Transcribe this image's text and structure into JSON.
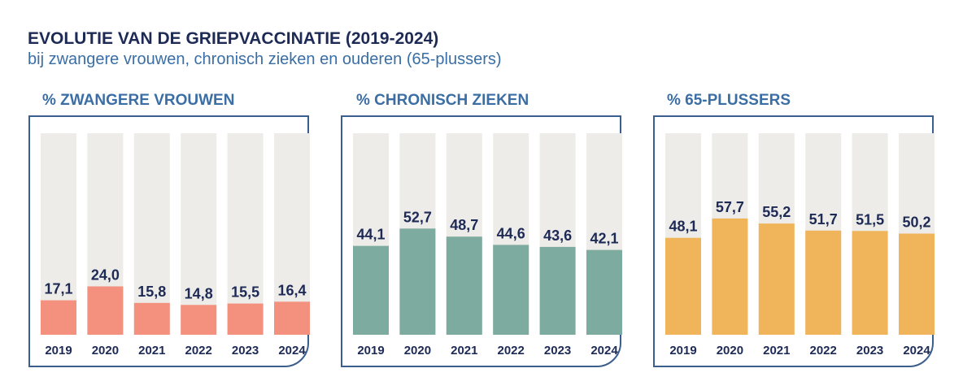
{
  "title": "EVOLUTIE VAN DE GRIEPVACCINATIE (2019-2024)",
  "subtitle": "bij zwangere vrouwen, chronisch zieken en ouderen (65-plussers)",
  "chart_data": [
    {
      "type": "bar",
      "title": "% ZWANGERE VROUWEN",
      "categories": [
        "2019",
        "2020",
        "2021",
        "2022",
        "2023",
        "2024"
      ],
      "values": [
        17.1,
        24.0,
        15.8,
        14.8,
        15.5,
        16.4
      ],
      "value_labels": [
        "17,1",
        "24,0",
        "15,8",
        "14,8",
        "15,5",
        "16,4"
      ],
      "ylim": [
        0,
        100
      ],
      "color": "#f4917e",
      "track_color": "#eeece8"
    },
    {
      "type": "bar",
      "title": "% CHRONISCH ZIEKEN",
      "categories": [
        "2019",
        "2020",
        "2021",
        "2022",
        "2023",
        "2024"
      ],
      "values": [
        44.1,
        52.7,
        48.7,
        44.6,
        43.6,
        42.1
      ],
      "value_labels": [
        "44,1",
        "52,7",
        "48,7",
        "44,6",
        "43,6",
        "42,1"
      ],
      "ylim": [
        0,
        100
      ],
      "color": "#7eab9f",
      "track_color": "#eeece8"
    },
    {
      "type": "bar",
      "title": "% 65-PLUSSERS",
      "categories": [
        "2019",
        "2020",
        "2021",
        "2022",
        "2023",
        "2024"
      ],
      "values": [
        48.1,
        57.7,
        55.2,
        51.7,
        51.5,
        50.2
      ],
      "value_labels": [
        "48,1",
        "57,7",
        "55,2",
        "51,7",
        "51,5",
        "50,2"
      ],
      "ylim": [
        0,
        100
      ],
      "color": "#f0b55b",
      "track_color": "#eeece8"
    }
  ]
}
